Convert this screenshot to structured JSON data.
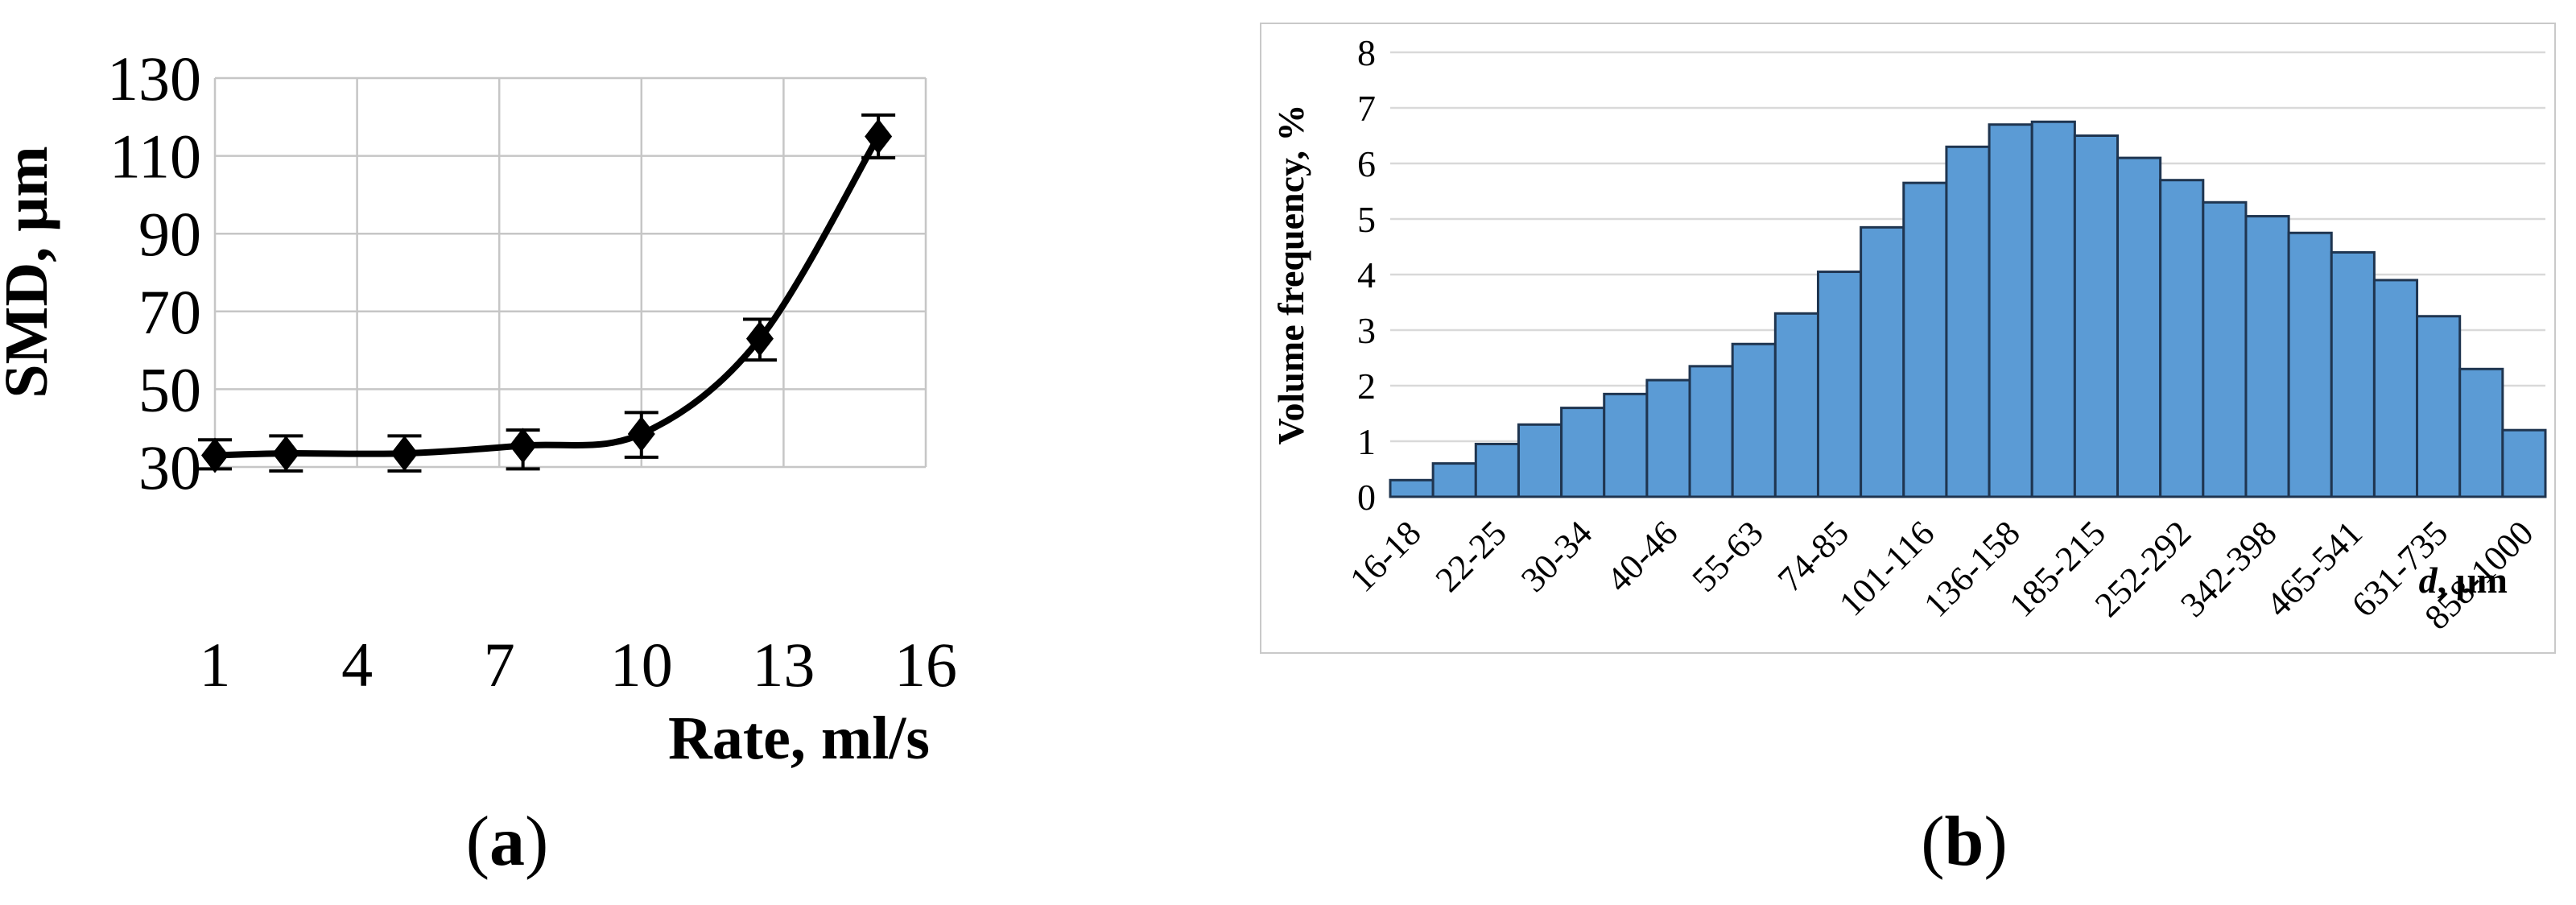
{
  "figure": {
    "background": "#ffffff",
    "ink_color": "#000000"
  },
  "captions": {
    "a": {
      "open": "(",
      "letter": "a",
      "close": ")"
    },
    "b": {
      "open": "(",
      "letter": "b",
      "close": ")"
    }
  },
  "chart_data": [
    {
      "id": "a",
      "type": "line",
      "title": "",
      "xlabel": "Rate, ml/s",
      "ylabel": "SMD, μm",
      "x": [
        1,
        2.5,
        5,
        7.5,
        10,
        12.5,
        15
      ],
      "y": [
        33,
        33.5,
        33.5,
        35.5,
        38.5,
        63,
        115
      ],
      "err_lo": [
        29.5,
        29,
        29,
        29.5,
        32.5,
        57.5,
        109.5
      ],
      "err_hi": [
        37,
        38,
        38,
        39.5,
        44,
        68,
        120.5
      ],
      "xticks": [
        1,
        4,
        7,
        10,
        13,
        16
      ],
      "yticks": [
        30,
        50,
        70,
        90,
        110,
        130
      ],
      "xlim": [
        1,
        16
      ],
      "ylim": [
        30,
        130
      ],
      "grid": true,
      "marker": "diamond",
      "line_color": "#000000",
      "gridline_color": "#c6c6c6"
    },
    {
      "id": "b",
      "type": "bar",
      "title": "",
      "xlabel_d": "d",
      "xlabel_unit": ", μm",
      "ylabel": "Volume frequency, %",
      "values": [
        0.3,
        0.6,
        0.95,
        1.3,
        1.6,
        1.85,
        2.1,
        2.35,
        2.75,
        3.3,
        4.05,
        4.85,
        5.65,
        6.3,
        6.7,
        6.75,
        6.5,
        6.1,
        5.7,
        5.3,
        5.05,
        4.75,
        4.4,
        3.9,
        3.25,
        2.3,
        1.2
      ],
      "tick_labels": [
        "16-18",
        "22-25",
        "30-34",
        "40-46",
        "55-63",
        "74-85",
        "101-116",
        "136-158",
        "185-215",
        "252-292",
        "342-398",
        "465-541",
        "631-735",
        "858-1000"
      ],
      "labeled_bar_step": 2,
      "yticks": [
        0,
        1,
        2,
        3,
        4,
        5,
        6,
        7,
        8
      ],
      "ylim": [
        0,
        8
      ],
      "grid": true,
      "bar_fill": "#5b9bd5",
      "bar_stroke": "#1f3550",
      "gridline_color": "#d9d9d9",
      "panel_border_color": "#c9c9c9"
    }
  ]
}
